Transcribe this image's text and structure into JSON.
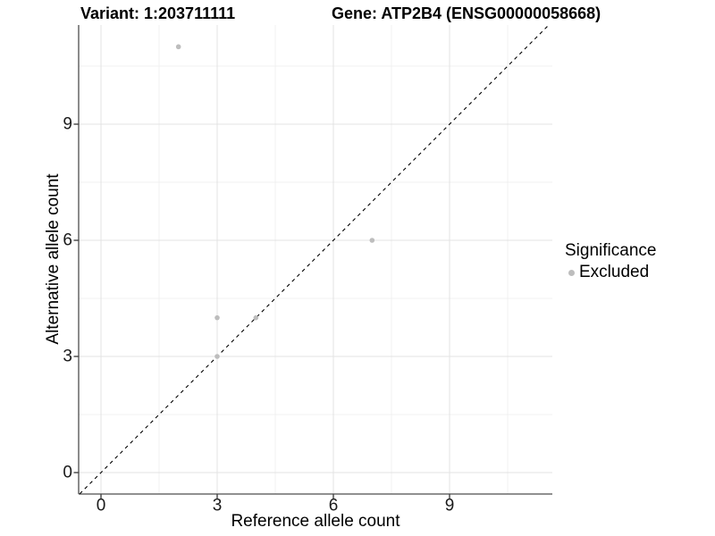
{
  "header": {
    "variant_title": "Variant: 1:203711111",
    "gene_title": "Gene: ATP2B4 (ENSG00000058668)"
  },
  "chart_data": {
    "type": "scatter",
    "title_left": "Variant: 1:203711111",
    "title_right": "Gene: ATP2B4 (ENSG00000058668)",
    "xlabel": "Reference allele count",
    "ylabel": "Alternative allele count",
    "xticks": [
      0,
      3,
      6,
      9
    ],
    "yticks": [
      0,
      3,
      6,
      9
    ],
    "minor_xticks": [
      1.5,
      4.5,
      7.5,
      10.5
    ],
    "minor_yticks": [
      1.5,
      4.5,
      7.5,
      10.5
    ],
    "xlim": [
      -0.55,
      11.65
    ],
    "ylim": [
      -0.55,
      11.56
    ],
    "grid": "major+minor",
    "identity_line": {
      "slope": 1,
      "intercept": 0,
      "linetype": "dashed",
      "color": "#000000"
    },
    "series": [
      {
        "name": "Excluded",
        "color": "#bdbdbd",
        "points": [
          {
            "x": 2,
            "y": 11
          },
          {
            "x": 3,
            "y": 3
          },
          {
            "x": 3,
            "y": 4
          },
          {
            "x": 4,
            "y": 4
          },
          {
            "x": 7,
            "y": 6
          }
        ]
      }
    ],
    "legend": {
      "title": "Significance",
      "position": "right",
      "items": [
        {
          "label": "Excluded",
          "color": "#bdbdbd"
        }
      ]
    }
  },
  "colors": {
    "background": "#ffffff",
    "grid_major": "#e3e3e3",
    "grid_minor": "#f0f0f0",
    "axis_line": "#4d4d4d",
    "tick_mark": "#333333",
    "tick_text": "#1a1a1a",
    "text": "#000000",
    "point": "#bdbdbd"
  }
}
